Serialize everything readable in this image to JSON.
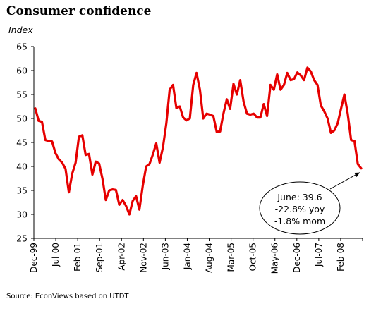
{
  "chart_data": {
    "type": "line",
    "title": "Consumer confidence",
    "subtitle": "Index",
    "source": "Source: EconViews based on UTDT",
    "ylim": [
      25,
      65
    ],
    "yticks": [
      25,
      30,
      35,
      40,
      45,
      50,
      55,
      60,
      65
    ],
    "x_tick_labels": [
      "Dec-99",
      "Jul-00",
      "Feb-01",
      "Sep-01",
      "Apr-02",
      "Nov-02",
      "Jun-03",
      "Jan-04",
      "Aug-04",
      "Mar-05",
      "Oct-05",
      "May-06",
      "Dec-06",
      "Jul-07",
      "Feb-08"
    ],
    "grid": false,
    "series": [
      {
        "color": "#e60000",
        "values": [
          52.1,
          49.5,
          49.3,
          45.5,
          45.3,
          45.2,
          42.8,
          41.5,
          40.8,
          39.5,
          34.6,
          38.5,
          40.8,
          46.2,
          46.5,
          42.4,
          42.6,
          38.3,
          41.0,
          40.6,
          37.4,
          33.0,
          35.0,
          35.2,
          35.1,
          32.0,
          33.0,
          31.8,
          30.0,
          32.8,
          33.8,
          31.0,
          36.0,
          40.0,
          40.5,
          42.5,
          44.8,
          40.8,
          44.0,
          49.0,
          56.0,
          57.0,
          52.2,
          52.5,
          50.2,
          49.6,
          50.0,
          57.0,
          59.5,
          56.0,
          50.0,
          51.0,
          50.8,
          50.5,
          47.2,
          47.3,
          51.0,
          54.0,
          52.0,
          57.2,
          55.0,
          58.0,
          53.5,
          51.0,
          50.8,
          51.0,
          50.2,
          50.2,
          53.0,
          50.5,
          57.0,
          56.0,
          59.2,
          56.0,
          57.0,
          59.5,
          58.0,
          58.2,
          59.6,
          59.0,
          58.0,
          60.6,
          59.8,
          58.0,
          57.0,
          52.7,
          51.5,
          50.0,
          47.0,
          47.5,
          49.0,
          52.0,
          55.0,
          51.0,
          45.5,
          45.3,
          40.5,
          39.6
        ]
      }
    ],
    "annotation": {
      "lines": [
        "June: 39.6",
        "-22.8% yoy",
        "-1.8% mom"
      ]
    }
  }
}
